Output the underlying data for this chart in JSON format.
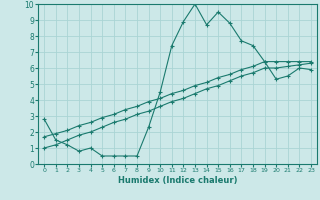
{
  "xlabel": "Humidex (Indice chaleur)",
  "bg_color": "#cce8e8",
  "line_color": "#1a7a6e",
  "grid_color": "#aad4d4",
  "xlim": [
    -0.5,
    23.5
  ],
  "ylim": [
    0,
    10
  ],
  "xticks": [
    0,
    1,
    2,
    3,
    4,
    5,
    6,
    7,
    8,
    9,
    10,
    11,
    12,
    13,
    14,
    15,
    16,
    17,
    18,
    19,
    20,
    21,
    22,
    23
  ],
  "yticks": [
    0,
    1,
    2,
    3,
    4,
    5,
    6,
    7,
    8,
    9,
    10
  ],
  "line1_x": [
    0,
    1,
    2,
    3,
    4,
    5,
    6,
    7,
    8,
    9,
    10,
    11,
    12,
    13,
    14,
    15,
    16,
    17,
    18,
    19,
    20,
    21,
    22,
    23
  ],
  "line1_y": [
    2.8,
    1.5,
    1.2,
    0.8,
    1.0,
    0.5,
    0.5,
    0.5,
    0.5,
    2.3,
    4.5,
    7.4,
    8.9,
    10.0,
    8.7,
    9.5,
    8.8,
    7.7,
    7.4,
    6.4,
    5.3,
    5.5,
    6.0,
    5.9
  ],
  "line2_x": [
    0,
    1,
    2,
    3,
    4,
    5,
    6,
    7,
    8,
    9,
    10,
    11,
    12,
    13,
    14,
    15,
    16,
    17,
    18,
    19,
    20,
    21,
    22,
    23
  ],
  "line2_y": [
    1.0,
    1.2,
    1.5,
    1.8,
    2.0,
    2.3,
    2.6,
    2.8,
    3.1,
    3.3,
    3.6,
    3.9,
    4.1,
    4.4,
    4.7,
    4.9,
    5.2,
    5.5,
    5.7,
    6.0,
    6.0,
    6.1,
    6.2,
    6.3
  ],
  "line3_x": [
    0,
    1,
    2,
    3,
    4,
    5,
    6,
    7,
    8,
    9,
    10,
    11,
    12,
    13,
    14,
    15,
    16,
    17,
    18,
    19,
    20,
    21,
    22,
    23
  ],
  "line3_y": [
    1.7,
    1.9,
    2.1,
    2.4,
    2.6,
    2.9,
    3.1,
    3.4,
    3.6,
    3.9,
    4.1,
    4.4,
    4.6,
    4.9,
    5.1,
    5.4,
    5.6,
    5.9,
    6.1,
    6.4,
    6.4,
    6.4,
    6.4,
    6.4
  ],
  "marker": "+"
}
